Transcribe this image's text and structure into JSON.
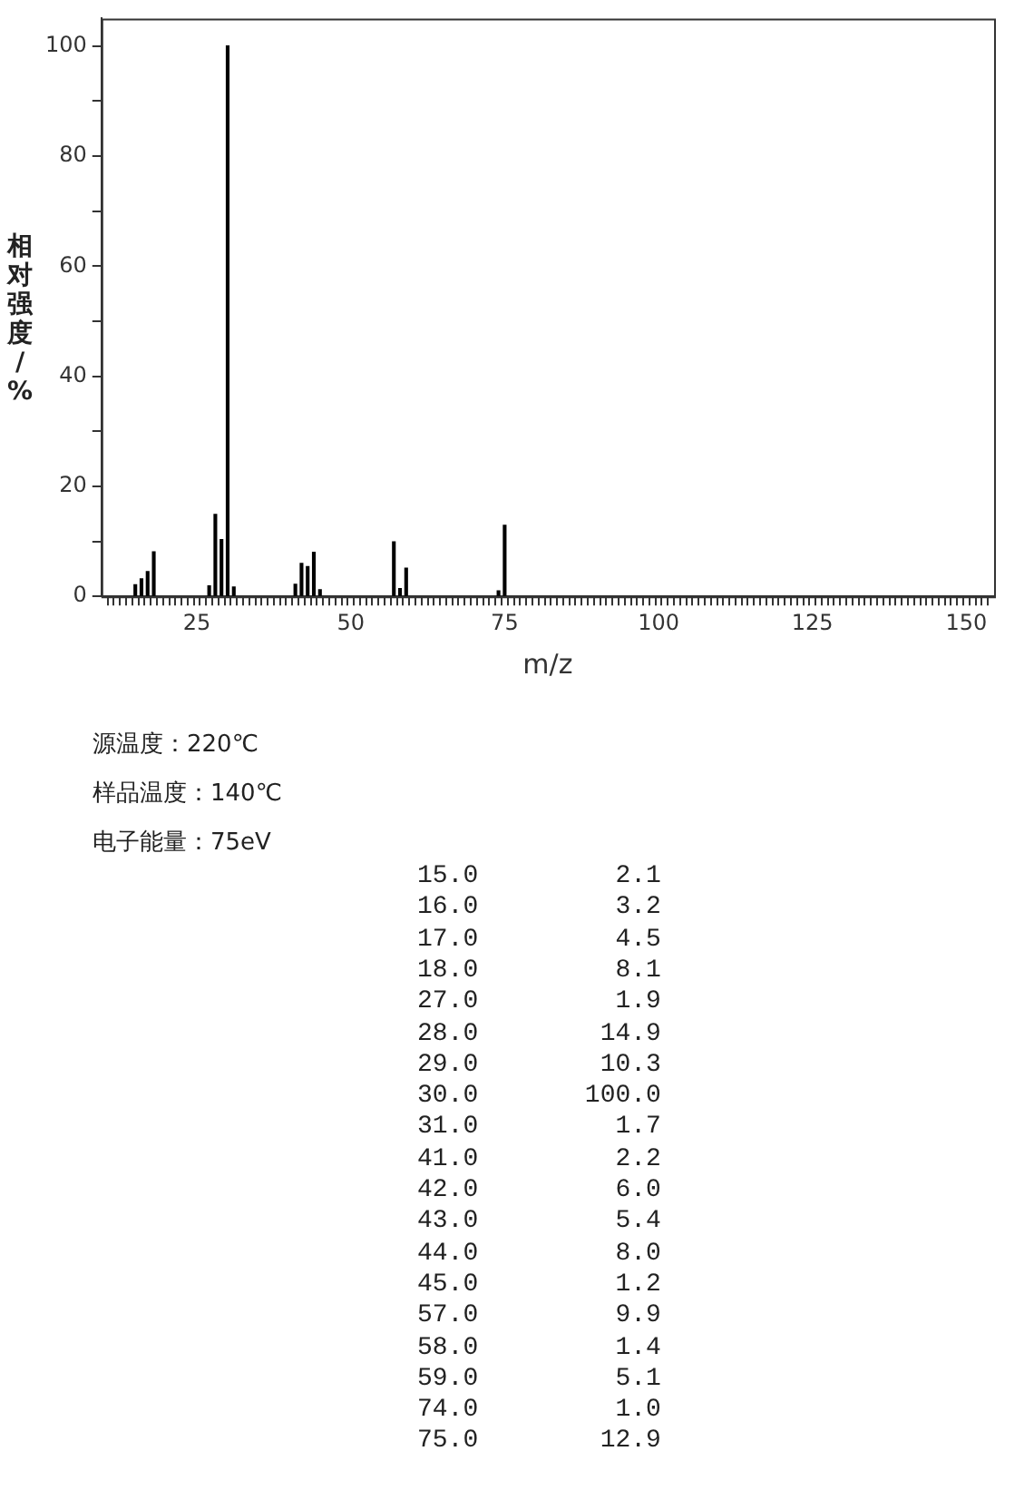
{
  "chart_data": {
    "type": "bar",
    "xlabel": "m/z",
    "ylabel": "相对强度/%",
    "color": "#000000",
    "x": [
      15,
      16,
      17,
      18,
      27,
      28,
      29,
      30,
      31,
      41,
      42,
      43,
      44,
      45,
      57,
      58,
      59,
      74,
      75
    ],
    "values": [
      2.1,
      3.2,
      4.5,
      8.1,
      1.9,
      14.9,
      10.3,
      100,
      1.7,
      2.2,
      6,
      5.4,
      8,
      1.2,
      9.9,
      1.4,
      5.1,
      1,
      12.9
    ],
    "xlim": [
      10,
      154
    ],
    "ylim": [
      0,
      105
    ],
    "xticks": [
      {
        "value": 11,
        "label": null
      },
      {
        "value": 12,
        "label": null
      },
      {
        "value": 13,
        "label": null
      },
      {
        "value": 14,
        "label": null
      },
      {
        "value": 15,
        "label": null
      },
      {
        "value": 16,
        "label": null
      },
      {
        "value": 17,
        "label": null
      },
      {
        "value": 18,
        "label": null
      },
      {
        "value": 19,
        "label": null
      },
      {
        "value": 20,
        "label": null
      },
      {
        "value": 21,
        "label": null
      },
      {
        "value": 22,
        "label": null
      },
      {
        "value": 23,
        "label": null
      },
      {
        "value": 24,
        "label": null
      },
      25,
      {
        "value": 26,
        "label": null
      },
      {
        "value": 27,
        "label": null
      },
      {
        "value": 28,
        "label": null
      },
      {
        "value": 29,
        "label": null
      },
      {
        "value": 30,
        "label": null
      },
      {
        "value": 31,
        "label": null
      },
      {
        "value": 32,
        "label": null
      },
      {
        "value": 33,
        "label": null
      },
      {
        "value": 34,
        "label": null
      },
      {
        "value": 35,
        "label": null
      },
      {
        "value": 36,
        "label": null
      },
      {
        "value": 37,
        "label": null
      },
      {
        "value": 38,
        "label": null
      },
      {
        "value": 39,
        "label": null
      },
      {
        "value": 40,
        "label": null
      },
      {
        "value": 41,
        "label": null
      },
      {
        "value": 42,
        "label": null
      },
      {
        "value": 43,
        "label": null
      },
      {
        "value": 44,
        "label": null
      },
      {
        "value": 45,
        "label": null
      },
      {
        "value": 46,
        "label": null
      },
      {
        "value": 47,
        "label": null
      },
      {
        "value": 48,
        "label": null
      },
      {
        "value": 49,
        "label": null
      },
      50,
      {
        "value": 51,
        "label": null
      },
      {
        "value": 52,
        "label": null
      },
      {
        "value": 53,
        "label": null
      },
      {
        "value": 54,
        "label": null
      },
      {
        "value": 55,
        "label": null
      },
      {
        "value": 56,
        "label": null
      },
      {
        "value": 57,
        "label": null
      },
      {
        "value": 58,
        "label": null
      },
      {
        "value": 59,
        "label": null
      },
      {
        "value": 60,
        "label": null
      },
      {
        "value": 61,
        "label": null
      },
      {
        "value": 62,
        "label": null
      },
      {
        "value": 63,
        "label": null
      },
      {
        "value": 64,
        "label": null
      },
      {
        "value": 65,
        "label": null
      },
      {
        "value": 66,
        "label": null
      },
      {
        "value": 67,
        "label": null
      },
      {
        "value": 68,
        "label": null
      },
      {
        "value": 69,
        "label": null
      },
      {
        "value": 70,
        "label": null
      },
      {
        "value": 71,
        "label": null
      },
      {
        "value": 72,
        "label": null
      },
      {
        "value": 73,
        "label": null
      },
      {
        "value": 74,
        "label": null
      },
      75,
      {
        "value": 76,
        "label": null
      },
      {
        "value": 77,
        "label": null
      },
      {
        "value": 78,
        "label": null
      },
      {
        "value": 79,
        "label": null
      },
      {
        "value": 80,
        "label": null
      },
      {
        "value": 81,
        "label": null
      },
      {
        "value": 82,
        "label": null
      },
      {
        "value": 83,
        "label": null
      },
      {
        "value": 84,
        "label": null
      },
      {
        "value": 85,
        "label": null
      },
      {
        "value": 86,
        "label": null
      },
      {
        "value": 87,
        "label": null
      },
      {
        "value": 88,
        "label": null
      },
      {
        "value": 89,
        "label": null
      },
      {
        "value": 90,
        "label": null
      },
      {
        "value": 91,
        "label": null
      },
      {
        "value": 92,
        "label": null
      },
      {
        "value": 93,
        "label": null
      },
      {
        "value": 94,
        "label": null
      },
      {
        "value": 95,
        "label": null
      },
      {
        "value": 96,
        "label": null
      },
      {
        "value": 97,
        "label": null
      },
      {
        "value": 98,
        "label": null
      },
      {
        "value": 99,
        "label": null
      },
      100,
      {
        "value": 101,
        "label": null
      },
      {
        "value": 102,
        "label": null
      },
      {
        "value": 103,
        "label": null
      },
      {
        "value": 104,
        "label": null
      },
      {
        "value": 105,
        "label": null
      },
      {
        "value": 106,
        "label": null
      },
      {
        "value": 107,
        "label": null
      },
      {
        "value": 108,
        "label": null
      },
      {
        "value": 109,
        "label": null
      },
      {
        "value": 110,
        "label": null
      },
      {
        "value": 111,
        "label": null
      },
      {
        "value": 112,
        "label": null
      },
      {
        "value": 113,
        "label": null
      },
      {
        "value": 114,
        "label": null
      },
      {
        "value": 115,
        "label": null
      },
      {
        "value": 116,
        "label": null
      },
      {
        "value": 117,
        "label": null
      },
      {
        "value": 118,
        "label": null
      },
      {
        "value": 119,
        "label": null
      },
      {
        "value": 120,
        "label": null
      },
      {
        "value": 121,
        "label": null
      },
      {
        "value": 122,
        "label": null
      },
      {
        "value": 123,
        "label": null
      },
      {
        "value": 124,
        "label": null
      },
      125,
      {
        "value": 126,
        "label": null
      },
      {
        "value": 127,
        "label": null
      },
      {
        "value": 128,
        "label": null
      },
      {
        "value": 129,
        "label": null
      },
      {
        "value": 130,
        "label": null
      },
      {
        "value": 131,
        "label": null
      },
      {
        "value": 132,
        "label": null
      },
      {
        "value": 133,
        "label": null
      },
      {
        "value": 134,
        "label": null
      },
      {
        "value": 135,
        "label": null
      },
      {
        "value": 136,
        "label": null
      },
      {
        "value": 137,
        "label": null
      },
      {
        "value": 138,
        "label": null
      },
      {
        "value": 139,
        "label": null
      },
      {
        "value": 140,
        "label": null
      },
      {
        "value": 141,
        "label": null
      },
      {
        "value": 142,
        "label": null
      },
      {
        "value": 143,
        "label": null
      },
      {
        "value": 144,
        "label": null
      },
      {
        "value": 145,
        "label": null
      },
      {
        "value": 146,
        "label": null
      },
      {
        "value": 147,
        "label": null
      },
      {
        "value": 148,
        "label": null
      },
      {
        "value": 149,
        "label": null
      },
      150,
      {
        "value": 151,
        "label": null
      },
      {
        "value": 152,
        "label": null
      },
      {
        "value": 153,
        "label": null
      }
    ],
    "yticks": [
      0,
      {
        "value": 10,
        "label": null
      },
      20,
      {
        "value": 30,
        "label": null
      },
      40,
      {
        "value": 50,
        "label": null
      },
      60,
      {
        "value": 70,
        "label": null
      },
      80,
      {
        "value": 90,
        "label": null
      },
      100
    ],
    "annotations": [
      "源温度：220℃",
      "样品温度：140℃",
      "电子能量：75eV",
      "15.0         2.1",
      "16.0         3.2",
      "17.0         4.5",
      "18.0         8.1",
      "27.0         1.9",
      "28.0        14.9",
      "29.0        10.3",
      "30.0       100.0",
      "31.0         1.7",
      "41.0         2.2",
      "42.0         6.0",
      "43.0         5.4",
      "44.0         8.0",
      "45.0         1.2",
      "57.0         9.9",
      "58.0         1.4",
      "59.0         5.1",
      "74.0         1.0",
      "75.0        12.9"
    ]
  }
}
